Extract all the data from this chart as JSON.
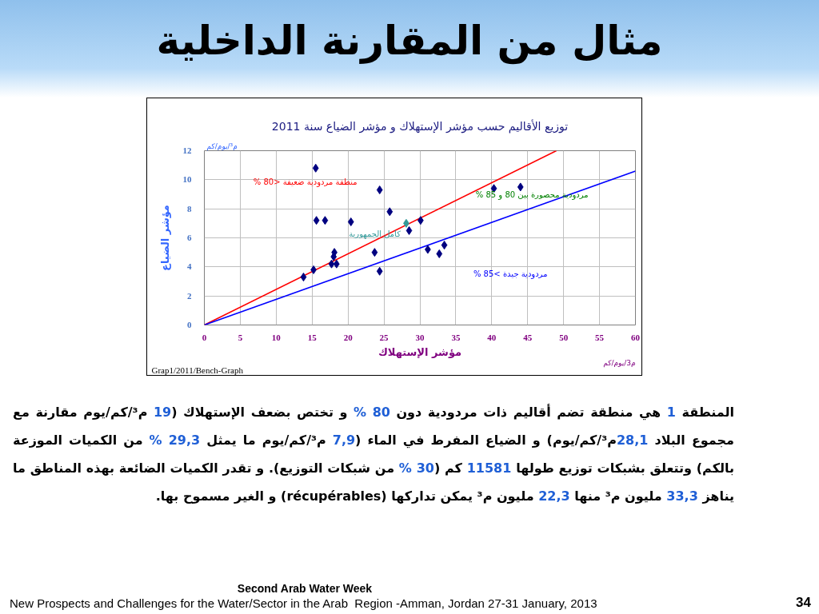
{
  "chart_data": {
    "type": "scatter",
    "title": "مثال من المقارنة الداخلية",
    "subtitle": "توزيع الأقاليم حسب مؤشر الإستهلاك و مؤشر الضياع سنة 2011",
    "xlabel": "مؤشر الإستهلاك",
    "ylabel": "مؤشر الضياع",
    "xlim": [
      0,
      60
    ],
    "xticks": [
      0,
      5,
      10,
      15,
      20,
      25,
      30,
      35,
      40,
      45,
      50,
      55,
      60
    ],
    "ylim": [
      0,
      12
    ],
    "yticks": [
      0,
      2,
      4,
      6,
      8,
      10,
      12
    ],
    "grid": true,
    "marker": "diamond",
    "series": [
      {
        "type": "line",
        "color": "#ff0000",
        "marker": "none",
        "x": [
          0,
          49
        ],
        "values": [
          0,
          12
        ]
      },
      {
        "type": "line",
        "color": "#0000ff",
        "marker": "none",
        "x": [
          0,
          60
        ],
        "values": [
          0,
          10.6
        ]
      },
      {
        "color": "#000080",
        "x": [
          13.8,
          15.2,
          15.5,
          15.6,
          16.8,
          17.7,
          18.0,
          18.1,
          18.4,
          20.4,
          23.7,
          24.4,
          24.4,
          25.8,
          28.5,
          30.1,
          31.1,
          32.7,
          33.4,
          40.3,
          44.0
        ],
        "values": [
          3.3,
          3.8,
          10.8,
          7.2,
          7.2,
          4.2,
          4.7,
          5.0,
          4.2,
          7.1,
          5.0,
          9.3,
          3.7,
          7.8,
          6.5,
          7.2,
          5.2,
          4.9,
          5.5,
          9.4,
          9.5
        ]
      },
      {
        "name": "كامل الجمهورية",
        "color": "#339999",
        "x": [
          28.1
        ],
        "values": [
          7.0
        ]
      }
    ],
    "annotations": [
      "م³/يوم/كم",
      "منطقة مردودية ضعيفة <80 %",
      "مردودية محصورة بين 80 و 85 %",
      "مردودية جيدة >85 %",
      "م3/يوم/كم",
      "Grap1/2011/Bench-Graph",
      "المنطقة 1 هي منطقة تضم أقاليم ذات مردودية دون 80 % و تختص بضعف الإستهلاك (19 م³/كم/يوم مقارنة مع مجموع البلاد 28,1م³/كم/يوم) و الضياع المفرط في الماء (7,9 م³/كم/يوم ما يمثل 29,3 % من الكميات الموزعة بالكم) وتتعلق بشبكات توزيع طولها 11581 كم (30 % من شبكات التوزيع). و تقدر الكميات الضائعة بهذه المناطق ما يناهز 33,3 مليون م³ منها 22,3 مليون م³ يمكن تداركها (récupérables) و الغير مسموح بها.",
      "Second Arab Water Week",
      "New Prospects and Challenges for the Water/Sector in the Arab  Region -Amman, Jordan 27-31 January, 2013",
      "34"
    ]
  }
}
